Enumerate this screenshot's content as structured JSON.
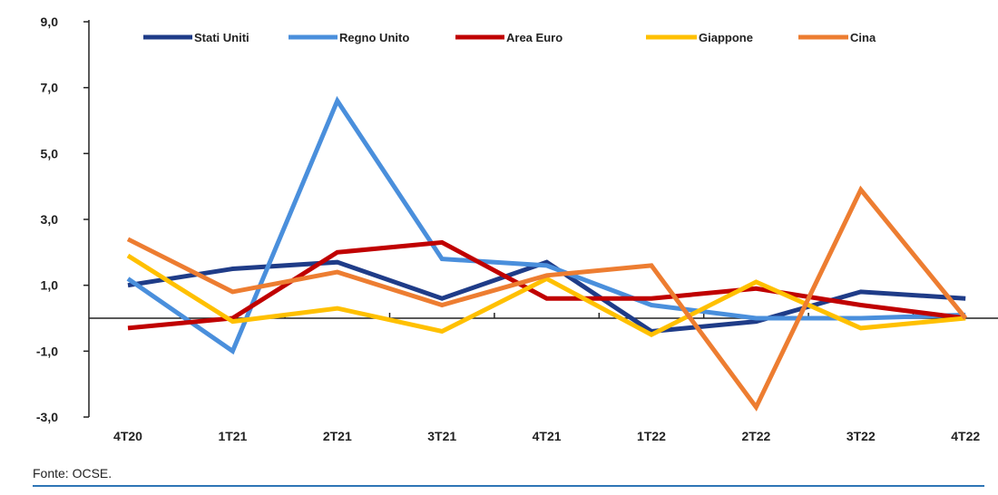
{
  "chart_data": {
    "type": "line",
    "title": "",
    "xlabel": "",
    "ylabel": "",
    "categories": [
      "4T20",
      "1T21",
      "2T21",
      "3T21",
      "4T21",
      "1T22",
      "2T22",
      "3T22",
      "4T22"
    ],
    "ylim": [
      -3.0,
      9.0
    ],
    "yticks": [
      "9,0",
      "7,0",
      "5,0",
      "3,0",
      "1,0",
      "-1,0",
      "-3,0"
    ],
    "ytick_values": [
      9,
      7,
      5,
      3,
      1,
      -1,
      -3
    ],
    "grid": false,
    "legend_position": "top",
    "series": [
      {
        "name": "Stati Uniti",
        "color": "#1f3c88",
        "values": [
          1.0,
          1.5,
          1.7,
          0.6,
          1.7,
          -0.4,
          -0.1,
          0.8,
          0.6
        ]
      },
      {
        "name": "Regno Unito",
        "color": "#4a8fdc",
        "values": [
          1.2,
          -1.0,
          6.6,
          1.8,
          1.6,
          0.4,
          0.0,
          0.0,
          0.1
        ]
      },
      {
        "name": "Area Euro",
        "color": "#c00000",
        "values": [
          -0.3,
          0.0,
          2.0,
          2.3,
          0.6,
          0.6,
          0.9,
          0.4,
          0.0
        ]
      },
      {
        "name": "Giappone",
        "color": "#ffc000",
        "values": [
          1.9,
          -0.1,
          0.3,
          -0.4,
          1.2,
          -0.5,
          1.1,
          -0.3,
          0.0
        ]
      },
      {
        "name": "Cina",
        "color": "#ed7d31",
        "values": [
          2.4,
          0.8,
          1.4,
          0.4,
          1.3,
          1.6,
          -2.7,
          3.9,
          0.0
        ]
      }
    ]
  },
  "footer": {
    "source": "Fonte: OCSE."
  }
}
